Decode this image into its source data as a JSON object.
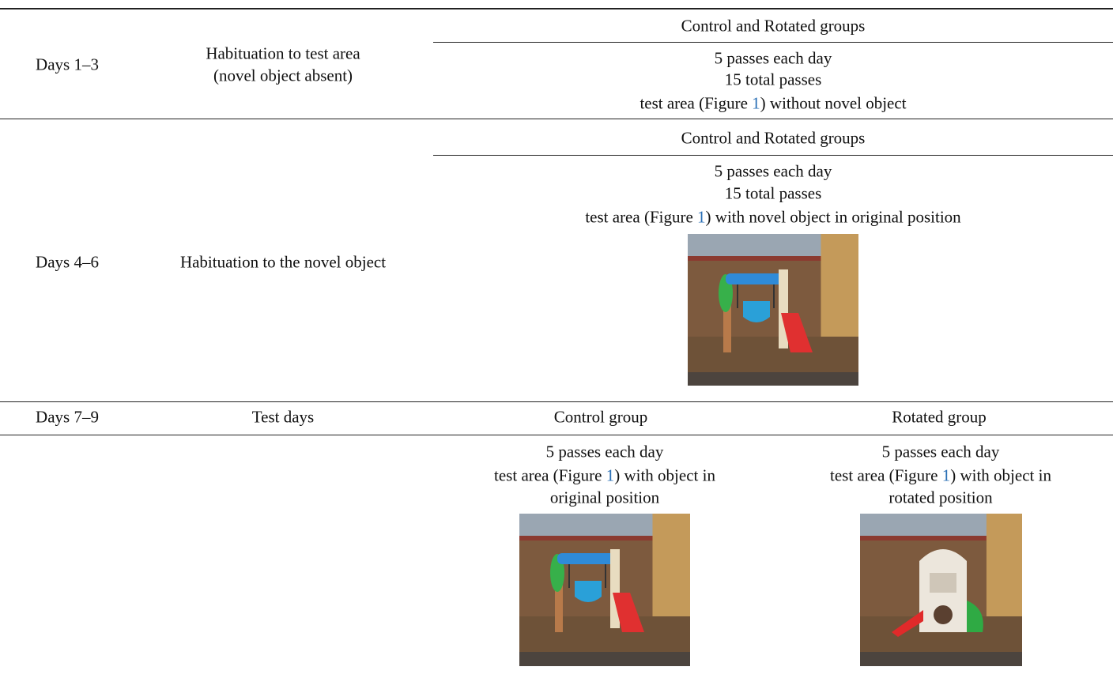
{
  "table": {
    "rows": [
      {
        "period": "Days 1–3",
        "phase": [
          "Habituation to test area",
          "(novel object absent)"
        ],
        "groups": [
          {
            "name": "Control and Rotated groups",
            "lines": [
              {
                "text": "5 passes each day"
              },
              {
                "text": "15 total passes"
              },
              {
                "text": "test area (Figure ",
                "ref": "1",
                "rest": ") without novel object"
              }
            ]
          }
        ]
      },
      {
        "period": "Days 4–6",
        "phase": [
          "Habituation to the novel object"
        ],
        "groups": [
          {
            "name": "Control and Rotated groups",
            "lines": [
              {
                "text": "5 passes each day"
              },
              {
                "text": "15 total passes"
              },
              {
                "text": "test area (Figure ",
                "ref": "1",
                "rest": ") with novel object in original position"
              }
            ]
          }
        ]
      },
      {
        "period": "Days 7–9",
        "phase": [
          "Test days"
        ],
        "groups": [
          {
            "name": "Control group",
            "lines": [
              {
                "text": "5 passes each day"
              },
              {
                "text": "test area (Figure ",
                "ref": "1",
                "rest": ") with object in"
              },
              {
                "text": "original position"
              }
            ]
          },
          {
            "name": "Rotated group",
            "lines": [
              {
                "text": "5 passes each day"
              },
              {
                "text": "test area (Figure ",
                "ref": "1",
                "rest": ") with object in"
              },
              {
                "text": "rotated position"
              }
            ]
          }
        ]
      }
    ]
  }
}
